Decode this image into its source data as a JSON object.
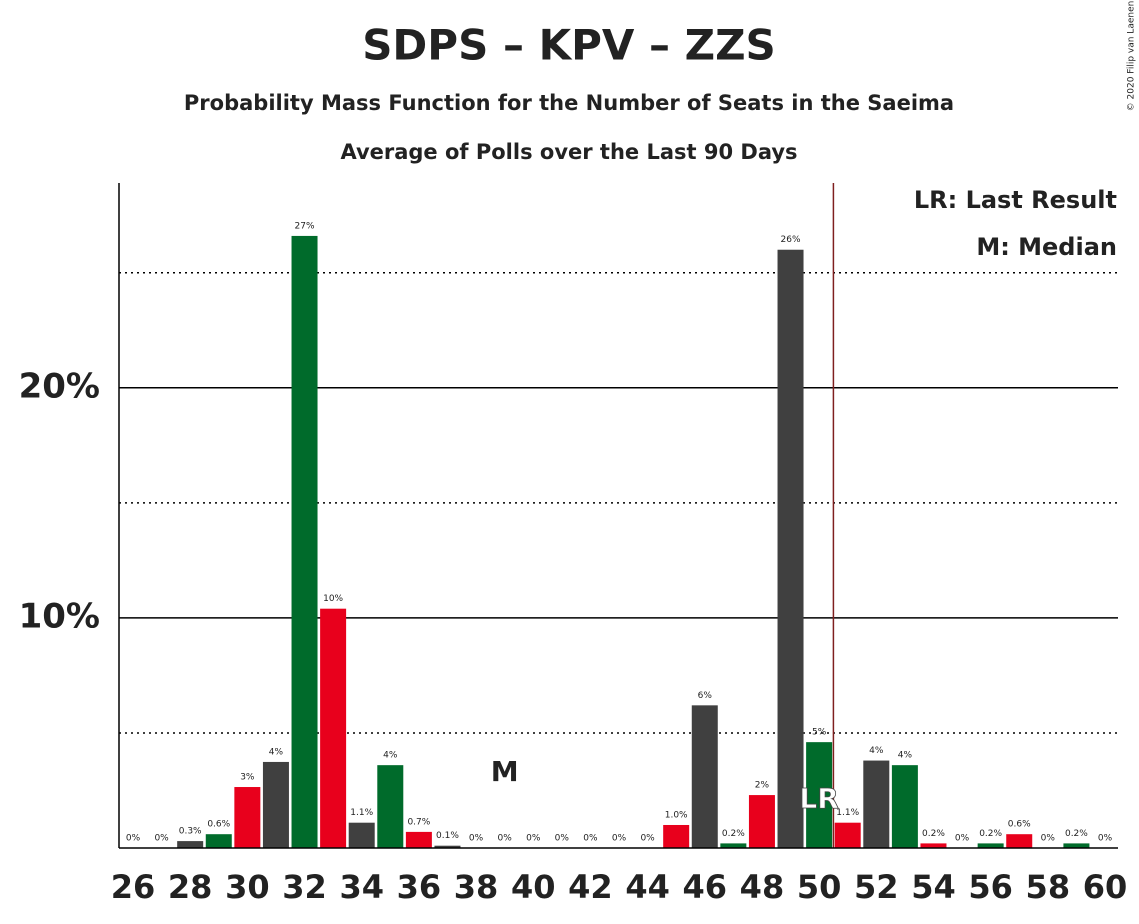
{
  "chart_data": {
    "type": "bar",
    "title": "SDPS – KPV – ZZS",
    "subtitle": "Probability Mass Function for the Number of Seats in the Saeima",
    "subtitle2": "Average of Polls over the Last 90 Days",
    "copyright": "© 2020 Filip van Laenen",
    "legend": [
      "LR: Last Result",
      "M: Median"
    ],
    "categories": [
      26,
      null,
      28,
      null,
      30,
      null,
      32,
      null,
      34,
      null,
      36,
      null,
      38,
      null,
      40,
      null,
      42,
      null,
      44,
      null,
      46,
      null,
      48,
      null,
      50,
      null,
      52,
      null,
      54,
      null,
      56,
      null,
      58,
      null,
      60
    ],
    "values": [
      0,
      0,
      0.3,
      0.6,
      2.65,
      3.74,
      26.6,
      10.4,
      1.1,
      3.6,
      0.7,
      0.1,
      0,
      0,
      0,
      0,
      0,
      0,
      0,
      1.0,
      6.2,
      0.2,
      2.3,
      26.0,
      4.6,
      1.1,
      3.8,
      3.6,
      0.2,
      0,
      0.2,
      0.6,
      0,
      0.2,
      0
    ],
    "value_labels": [
      "0%",
      "0%",
      "0.3%",
      "0.6%",
      "3%",
      "4%",
      "27%",
      "10%",
      "1.1%",
      "4%",
      "0.7%",
      "0.1%",
      "0%",
      "0%",
      "0%",
      "0%",
      "0%",
      "0%",
      "0%",
      "1.0%",
      "6%",
      "0.2%",
      "2%",
      "26%",
      "5%",
      "1.1%",
      "4%",
      "4%",
      "0.2%",
      "0%",
      "0.2%",
      "0.6%",
      "0%",
      "0.2%",
      "0%"
    ],
    "colors": [
      "#e8001c",
      "#404040",
      "#404040",
      "#006b2b",
      "#e8001c",
      "#404040",
      "#006b2b",
      "#e8001c",
      "#404040",
      "#006b2b",
      "#e8001c",
      "#404040",
      "#006b2b",
      "#e8001c",
      "#404040",
      "#006b2b",
      "#e8001c",
      "#404040",
      "#006b2b",
      "#e8001c",
      "#404040",
      "#006b2b",
      "#e8001c",
      "#404040",
      "#006b2b",
      "#e8001c",
      "#404040",
      "#006b2b",
      "#e8001c",
      "#404040",
      "#006b2b",
      "#e8001c",
      "#404040",
      "#006b2b",
      "#e8001c"
    ],
    "ylim": [
      0,
      28.9
    ],
    "yticks": [
      {
        "value": 10,
        "label": "10%"
      },
      {
        "value": 20,
        "label": "20%"
      }
    ],
    "minor_yticks": [
      5,
      15,
      25
    ],
    "median": 39,
    "median_label": "M",
    "last_result": 50,
    "last_result_label": "LR",
    "last_result_color": "#7f1f1f"
  }
}
